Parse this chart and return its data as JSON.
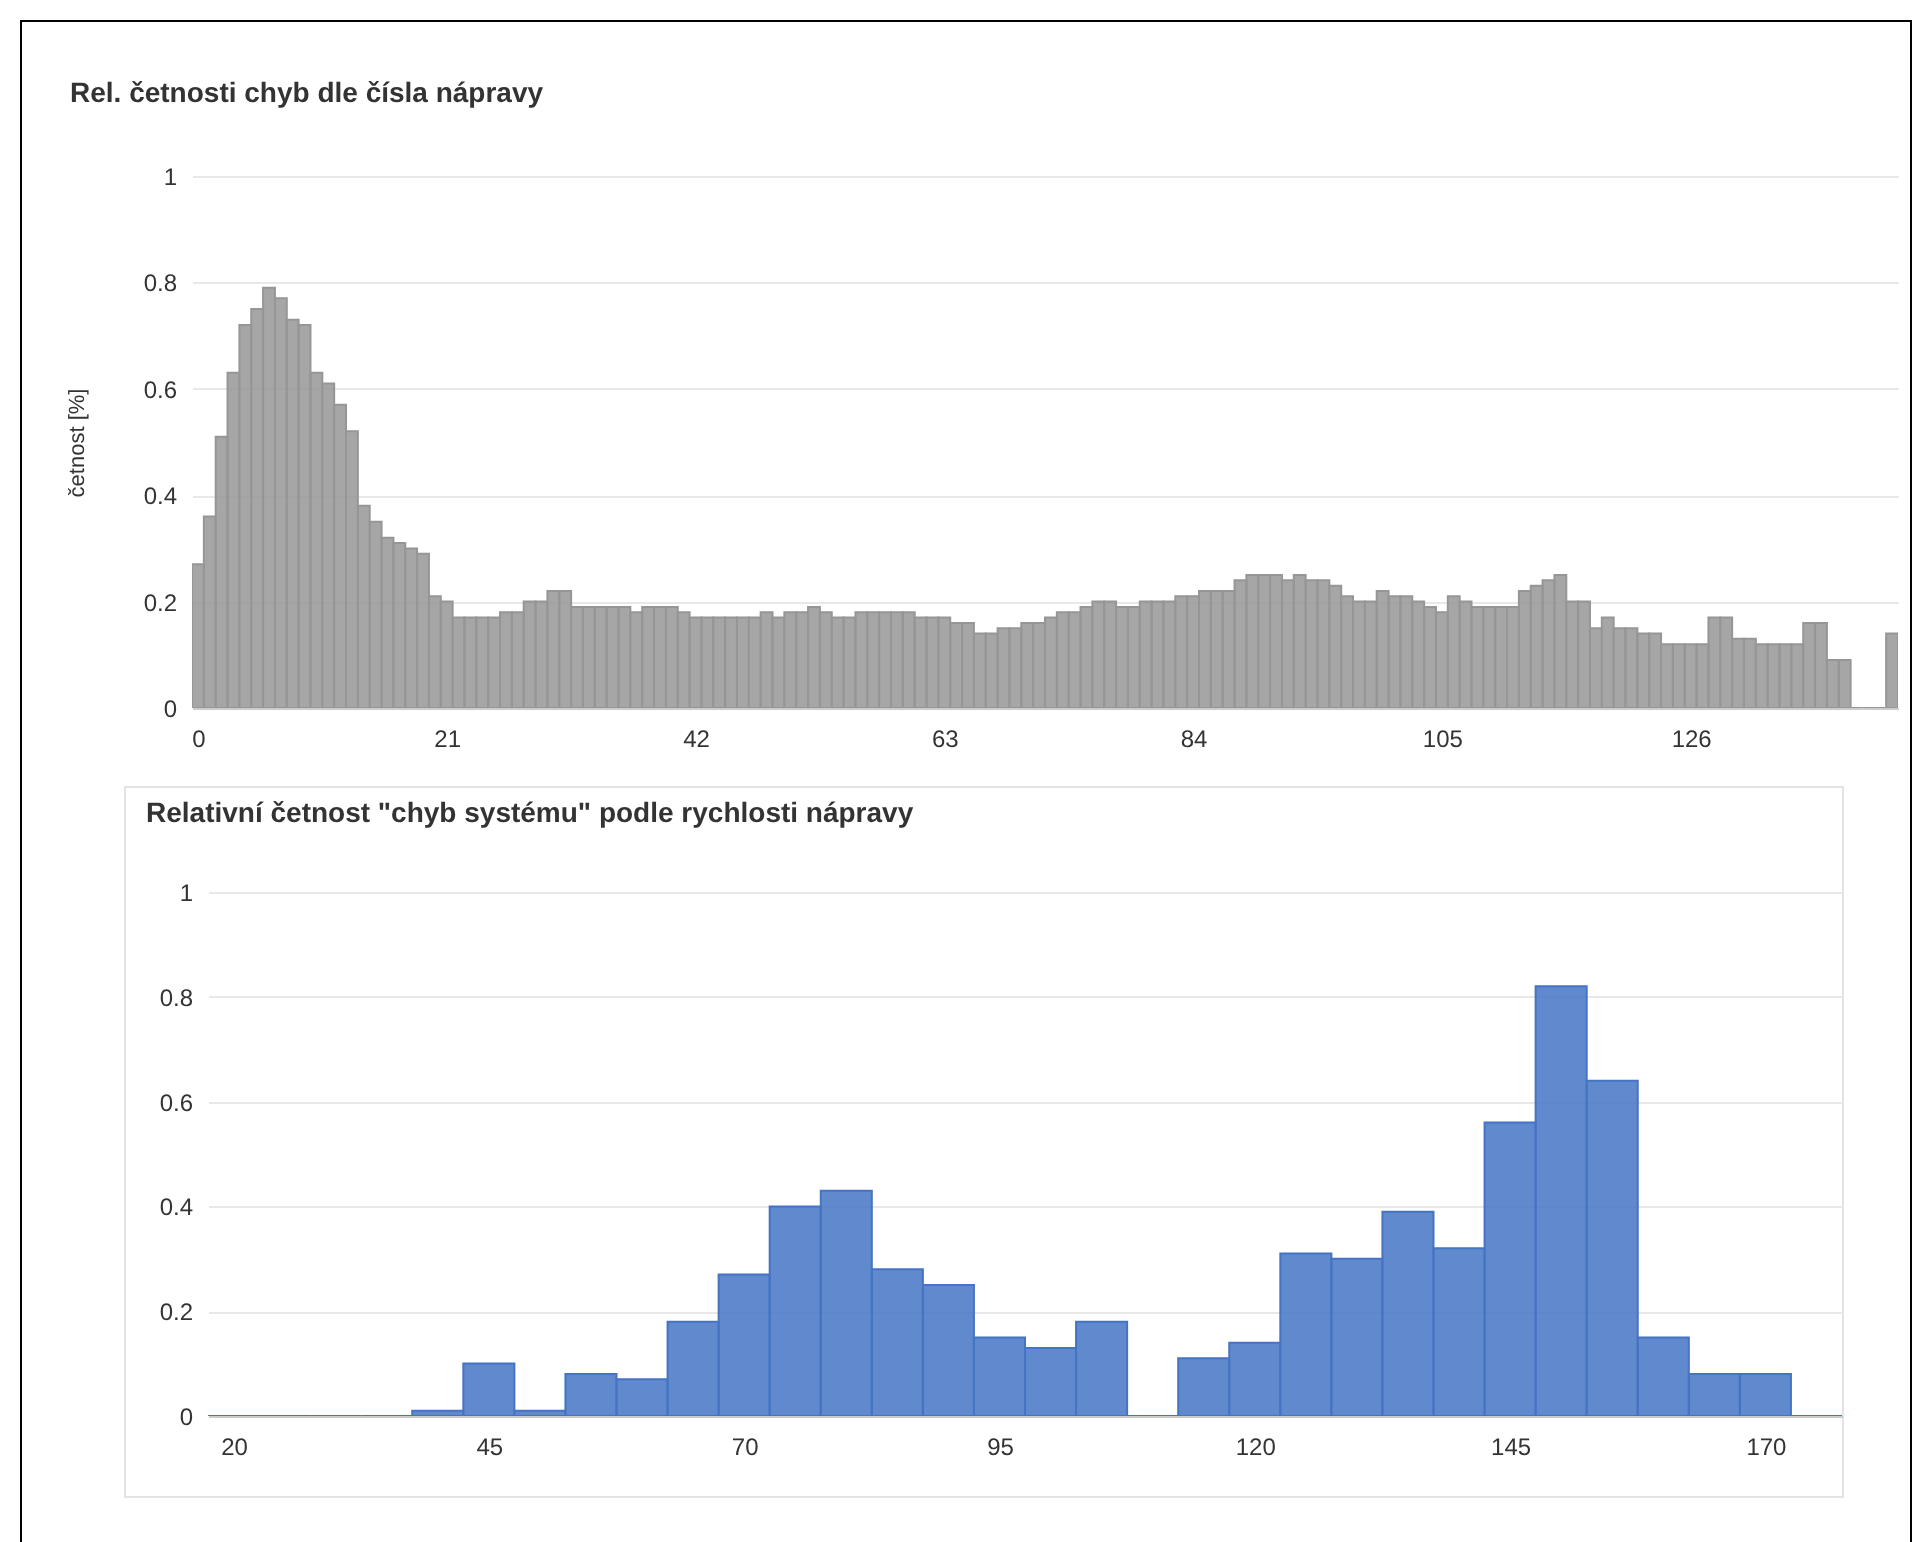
{
  "chart_data": [
    {
      "type": "bar",
      "title": "Rel. četnosti chyb dle čísla nápravy",
      "ylabel": "četnost [%]",
      "color": "#969696",
      "x": [
        0,
        1,
        2,
        3,
        4,
        5,
        6,
        7,
        8,
        9,
        10,
        11,
        12,
        13,
        14,
        15,
        16,
        17,
        18,
        19,
        20,
        21,
        22,
        23,
        24,
        25,
        26,
        27,
        28,
        29,
        30,
        31,
        32,
        33,
        34,
        35,
        36,
        37,
        38,
        39,
        40,
        41,
        42,
        43,
        44,
        45,
        46,
        47,
        48,
        49,
        50,
        51,
        52,
        53,
        54,
        55,
        56,
        57,
        58,
        59,
        60,
        61,
        62,
        63,
        64,
        65,
        66,
        67,
        68,
        69,
        70,
        71,
        72,
        73,
        74,
        75,
        76,
        77,
        78,
        79,
        80,
        81,
        82,
        83,
        84,
        85,
        86,
        87,
        88,
        89,
        90,
        91,
        92,
        93,
        94,
        95,
        96,
        97,
        98,
        99,
        100,
        101,
        102,
        103,
        104,
        105,
        106,
        107,
        108,
        109,
        110,
        111,
        112,
        113,
        114,
        115,
        116,
        117,
        118,
        119,
        120,
        121,
        122,
        123,
        124,
        125,
        126,
        127,
        128,
        129,
        130,
        131,
        132,
        133,
        134,
        135,
        136,
        137,
        138,
        139,
        140,
        141,
        142,
        143
      ],
      "values": [
        0.27,
        0.36,
        0.51,
        0.63,
        0.72,
        0.75,
        0.79,
        0.77,
        0.73,
        0.72,
        0.63,
        0.61,
        0.57,
        0.52,
        0.38,
        0.35,
        0.32,
        0.31,
        0.3,
        0.29,
        0.21,
        0.2,
        0.17,
        0.17,
        0.17,
        0.17,
        0.18,
        0.18,
        0.2,
        0.2,
        0.22,
        0.22,
        0.19,
        0.19,
        0.19,
        0.19,
        0.19,
        0.18,
        0.19,
        0.19,
        0.19,
        0.18,
        0.17,
        0.17,
        0.17,
        0.17,
        0.17,
        0.17,
        0.18,
        0.17,
        0.18,
        0.18,
        0.19,
        0.18,
        0.17,
        0.17,
        0.18,
        0.18,
        0.18,
        0.18,
        0.18,
        0.17,
        0.17,
        0.17,
        0.16,
        0.16,
        0.14,
        0.14,
        0.15,
        0.15,
        0.16,
        0.16,
        0.17,
        0.18,
        0.18,
        0.19,
        0.2,
        0.2,
        0.19,
        0.19,
        0.2,
        0.2,
        0.2,
        0.21,
        0.21,
        0.22,
        0.22,
        0.22,
        0.24,
        0.25,
        0.25,
        0.25,
        0.24,
        0.25,
        0.24,
        0.24,
        0.23,
        0.21,
        0.2,
        0.2,
        0.22,
        0.21,
        0.21,
        0.2,
        0.19,
        0.18,
        0.21,
        0.2,
        0.19,
        0.19,
        0.19,
        0.19,
        0.22,
        0.23,
        0.24,
        0.25,
        0.2,
        0.2,
        0.15,
        0.17,
        0.15,
        0.15,
        0.14,
        0.14,
        0.12,
        0.12,
        0.12,
        0.12,
        0.17,
        0.17,
        0.13,
        0.13,
        0.12,
        0.12,
        0.12,
        0.12,
        0.16,
        0.16,
        0.09,
        0.09,
        0,
        0,
        0,
        0.14
      ],
      "xlim": [
        -0.5,
        143.5
      ],
      "xticks": [
        0,
        21,
        42,
        63,
        84,
        105,
        126
      ],
      "ylim": [
        0,
        1
      ],
      "yticks": [
        0,
        0.2,
        0.4,
        0.6,
        0.8,
        1
      ],
      "grid": "y"
    },
    {
      "type": "histogram",
      "title": "Relativní četnost \"chyb systému\" podle rychlosti nápravy",
      "color": "#4574c4",
      "bins": [
        17.5,
        22.5,
        27.5,
        32.5,
        37.5,
        42.5,
        47.5,
        52.5,
        57.5,
        62.5,
        67.5,
        72.5,
        77.5,
        82.5,
        87.5,
        92.5,
        97.5,
        102.5,
        107.5,
        112.5,
        117.5,
        122.5,
        127.5,
        132.5,
        137.5,
        142.5,
        147.5,
        152.5,
        157.5,
        162.5,
        167.5,
        172.5,
        177.5
      ],
      "values": [
        0,
        0,
        0,
        0,
        0.01,
        0.1,
        0.01,
        0.08,
        0.07,
        0.18,
        0.27,
        0.4,
        0.43,
        0.28,
        0.25,
        0.15,
        0.13,
        0.18,
        0,
        0.11,
        0.14,
        0.31,
        0.3,
        0.39,
        0.32,
        0.56,
        0.82,
        0.64,
        0.15,
        0.08,
        0.08,
        0
      ],
      "xlim": [
        17.5,
        177.5
      ],
      "xticks": [
        20,
        45,
        70,
        95,
        120,
        145,
        170
      ],
      "ylim": [
        0,
        1
      ],
      "yticks": [
        0,
        0.2,
        0.4,
        0.6,
        0.8,
        1
      ],
      "grid": "y"
    }
  ]
}
